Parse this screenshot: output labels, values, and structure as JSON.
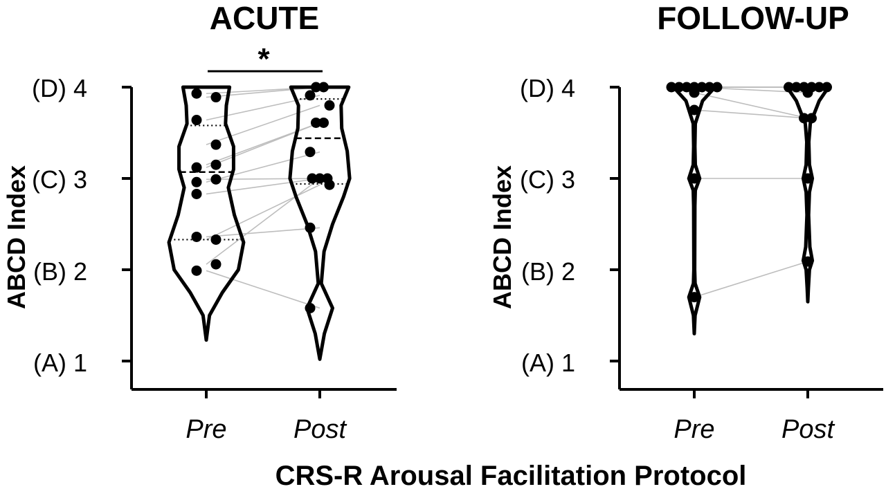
{
  "x_axis_title": "CRS-R Arousal Facilitation Protocol",
  "chart_data": [
    {
      "type": "violin",
      "title": "ACUTE",
      "ylabel": "ABCD Index",
      "ylim": [
        1,
        4
      ],
      "yticks": [
        {
          "value": 1,
          "label": "(A) 1"
        },
        {
          "value": 2,
          "label": "(B) 2"
        },
        {
          "value": 3,
          "label": "(C) 3"
        },
        {
          "value": 4,
          "label": "(D) 4"
        }
      ],
      "categories": [
        "Pre",
        "Post"
      ],
      "significance": {
        "between": [
          "Pre",
          "Post"
        ],
        "label": "*"
      },
      "median": [
        3.07,
        3.44
      ],
      "quartiles": [
        [
          2.33,
          3.58
        ],
        [
          2.94,
          3.87
        ]
      ],
      "violin_range": [
        [
          1.23,
          4.0
        ],
        [
          1.02,
          4.0
        ]
      ],
      "pairs": [
        {
          "pre": 3.93,
          "post": 4.0
        },
        {
          "pre": 3.89,
          "post": 4.0
        },
        {
          "pre": 3.64,
          "post": 3.91
        },
        {
          "pre": 3.37,
          "post": 3.8
        },
        {
          "pre": 3.12,
          "post": 3.61
        },
        {
          "pre": 3.15,
          "post": 3.61
        },
        {
          "pre": 2.96,
          "post": 3.29
        },
        {
          "pre": 2.99,
          "post": 3.0
        },
        {
          "pre": 2.83,
          "post": 3.0
        },
        {
          "pre": 2.33,
          "post": 2.93
        },
        {
          "pre": 2.36,
          "post": 2.46
        },
        {
          "pre": 2.06,
          "post": 3.0
        },
        {
          "pre": 1.99,
          "post": 1.58
        }
      ]
    },
    {
      "type": "violin",
      "title": "FOLLOW-UP",
      "ylabel": "ABCD Index",
      "ylim": [
        1,
        4
      ],
      "yticks": [
        {
          "value": 1,
          "label": "(A) 1"
        },
        {
          "value": 2,
          "label": "(B) 2"
        },
        {
          "value": 3,
          "label": "(C) 3"
        },
        {
          "value": 4,
          "label": "(D) 4"
        }
      ],
      "categories": [
        "Pre",
        "Post"
      ],
      "median": [
        4.0,
        4.0
      ],
      "violin_range": [
        [
          1.3,
          4.0
        ],
        [
          1.65,
          4.0
        ]
      ],
      "pairs": [
        {
          "pre": 4.0,
          "post": 4.0
        },
        {
          "pre": 4.0,
          "post": 4.0
        },
        {
          "pre": 4.0,
          "post": 4.0
        },
        {
          "pre": 4.0,
          "post": 4.0
        },
        {
          "pre": 4.0,
          "post": 4.0
        },
        {
          "pre": 4.0,
          "post": 4.0
        },
        {
          "pre": 4.0,
          "post": 3.94
        },
        {
          "pre": 3.94,
          "post": 3.66
        },
        {
          "pre": 3.75,
          "post": 3.66
        },
        {
          "pre": 3.0,
          "post": 3.0
        },
        {
          "pre": 1.7,
          "post": 2.09
        }
      ]
    }
  ]
}
